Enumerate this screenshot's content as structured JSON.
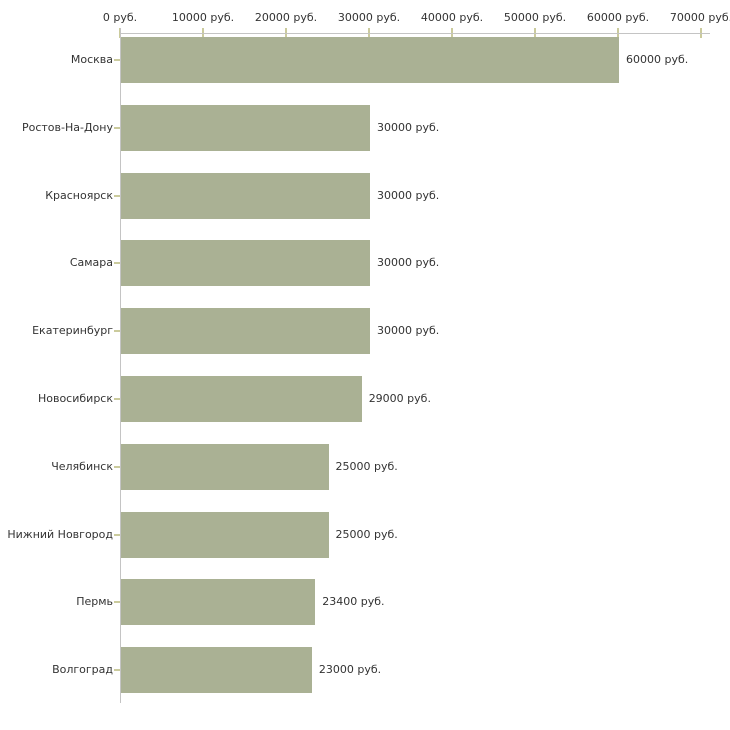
{
  "chart_data": {
    "type": "bar",
    "orientation": "horizontal",
    "unit": "руб.",
    "categories": [
      "Москва",
      "Ростов-На-Дону",
      "Красноярск",
      "Самара",
      "Екатеринбург",
      "Новосибирск",
      "Челябинск",
      "Нижний Новгород",
      "Пермь",
      "Волгоград"
    ],
    "values": [
      60000,
      30000,
      30000,
      30000,
      30000,
      29000,
      25000,
      25000,
      23400,
      23000
    ],
    "value_labels": [
      "60000 руб.",
      "30000 руб.",
      "30000 руб.",
      "30000 руб.",
      "30000 руб.",
      "29000 руб.",
      "25000 руб.",
      "25000 руб.",
      "23400 руб.",
      "23000 руб."
    ],
    "x_axis": {
      "position": "top",
      "min": 0,
      "max": 70000,
      "tick_step": 10000,
      "tick_labels": [
        "0 руб.",
        "10000 руб.",
        "20000 руб.",
        "30000 руб.",
        "40000 руб.",
        "50000 руб.",
        "60000 руб.",
        "70000 руб."
      ]
    },
    "grid": false,
    "legend": false,
    "colors": {
      "bar": "#aab194",
      "axis_line": "#c4c4c4",
      "tick": "#cbcb9d",
      "text": "#333333",
      "background": "#ffffff"
    }
  }
}
